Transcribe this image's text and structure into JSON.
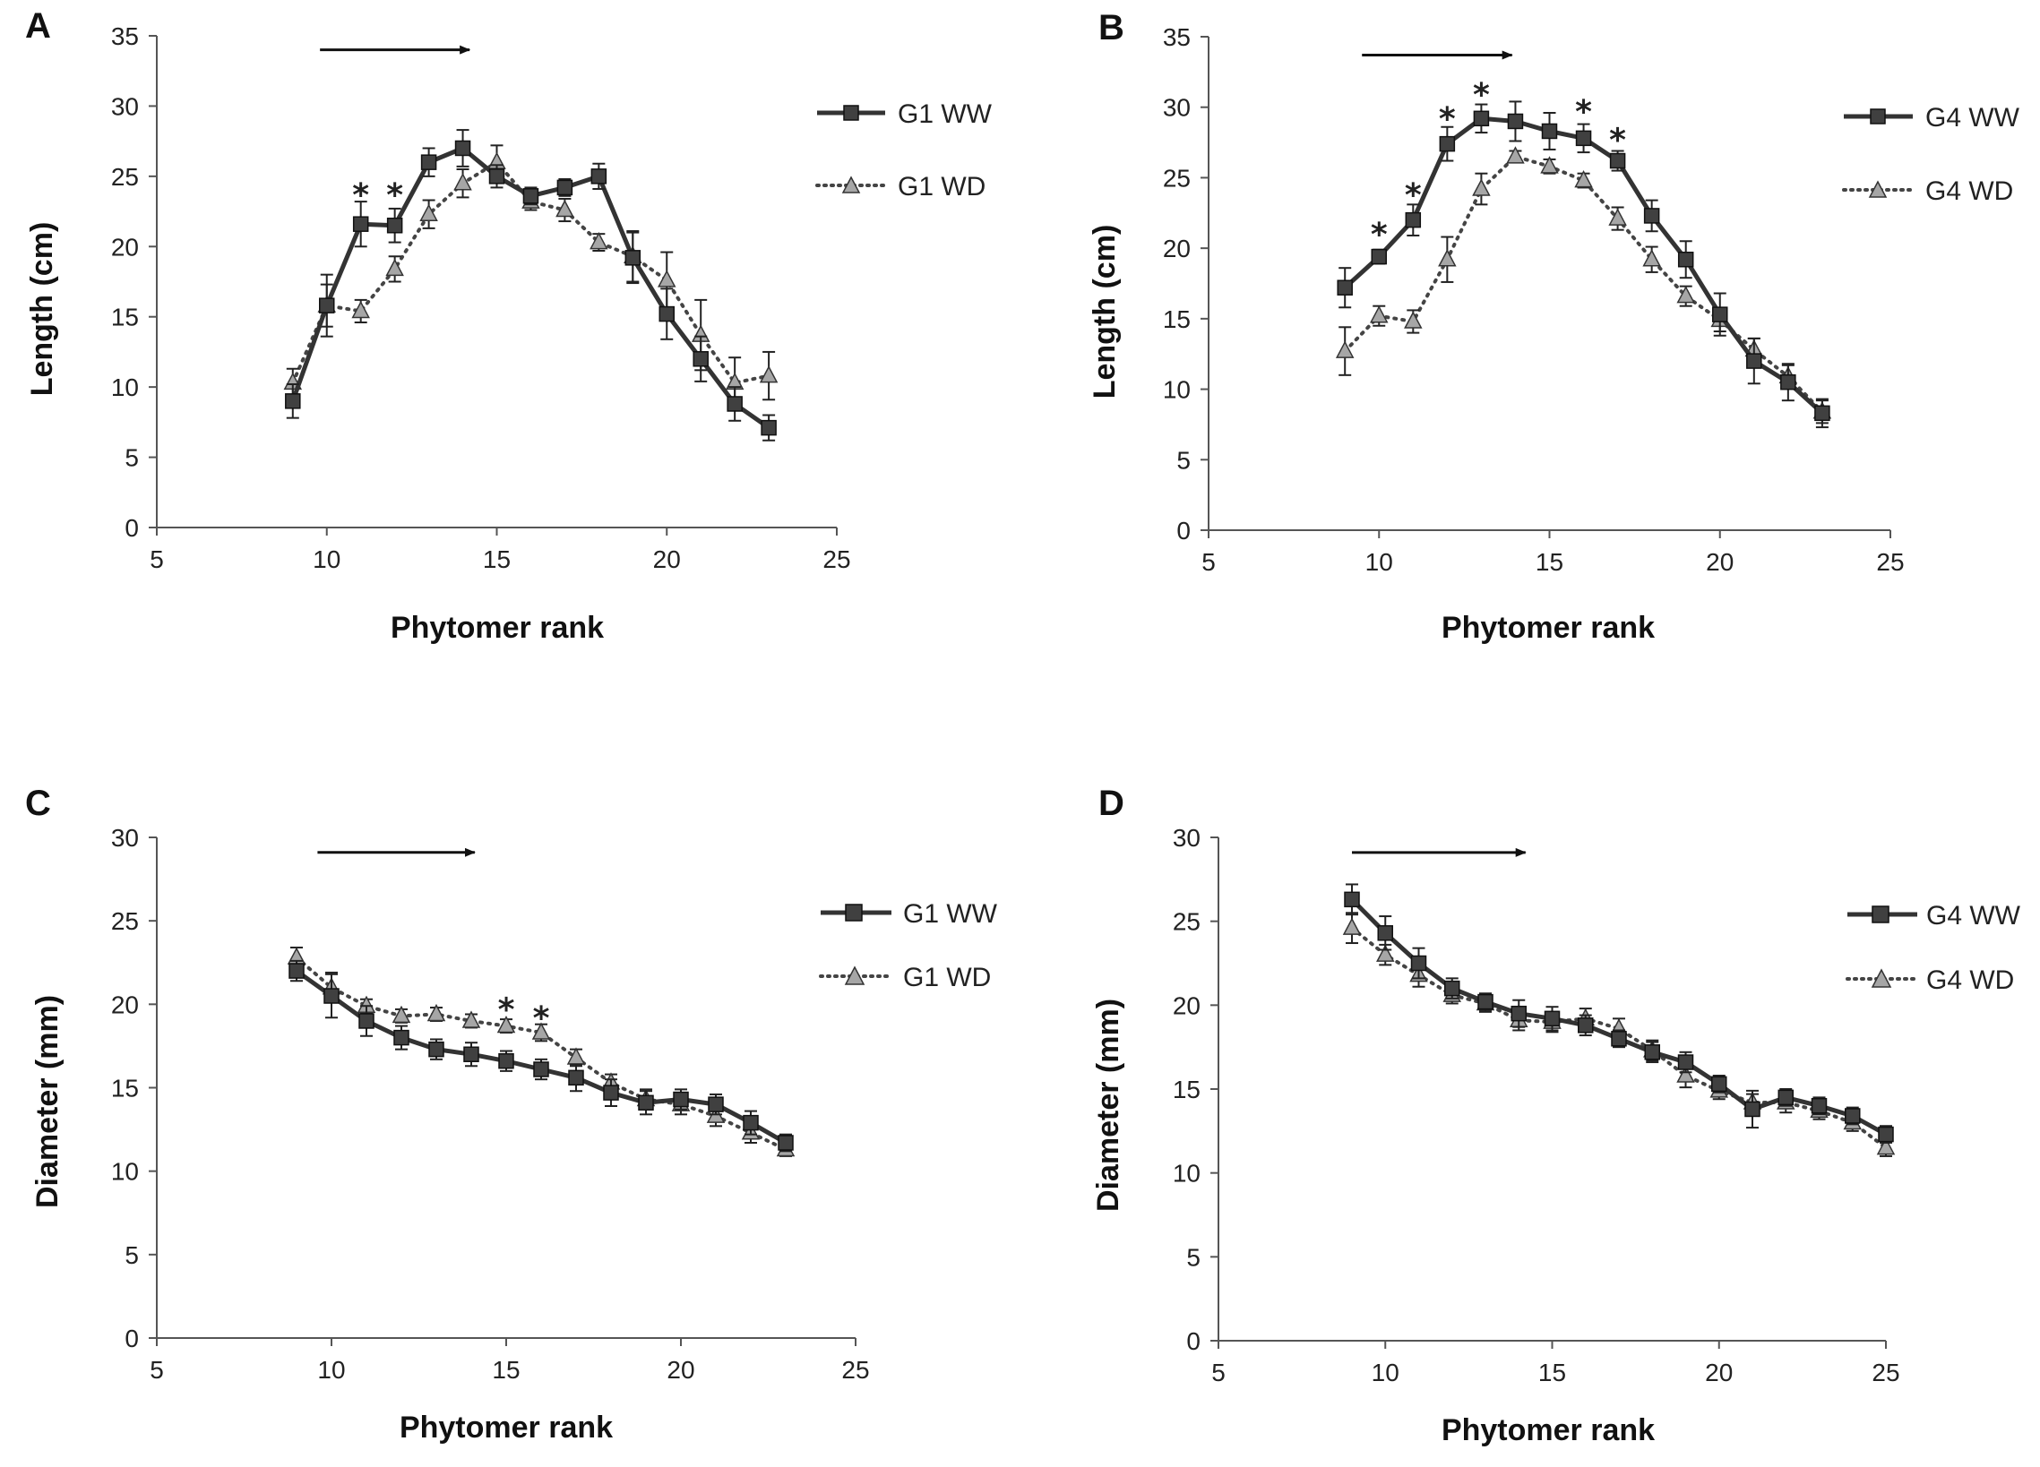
{
  "chart_data": [
    {
      "panel": "A",
      "type": "line",
      "xlabel": "Phytomer rank",
      "ylabel": "Length (cm)",
      "xlim": [
        5,
        25
      ],
      "ylim": [
        0,
        35
      ],
      "xticks": [
        5,
        10,
        15,
        20,
        25
      ],
      "yticks": [
        0,
        5,
        10,
        15,
        20,
        25,
        30,
        35
      ],
      "arrow": {
        "from": 9.8,
        "to": 14.2,
        "y": 34.0
      },
      "series": [
        {
          "name": "G1 WW",
          "style": "solid",
          "marker": "square",
          "x": [
            9,
            10,
            11,
            12,
            13,
            14,
            15,
            16,
            17,
            18,
            19,
            20,
            21,
            22,
            23
          ],
          "values": [
            9.0,
            15.8,
            21.6,
            21.5,
            26.0,
            27.0,
            25.0,
            23.6,
            24.2,
            25.0,
            19.2,
            15.2,
            12.0,
            8.8,
            7.1
          ],
          "errors": [
            1.2,
            2.2,
            1.6,
            1.2,
            1.0,
            1.3,
            0.8,
            0.6,
            0.6,
            0.9,
            1.8,
            1.8,
            1.6,
            1.2,
            0.9
          ]
        },
        {
          "name": "G1 WD",
          "style": "dotted",
          "marker": "triangle",
          "x": [
            9,
            10,
            11,
            12,
            13,
            14,
            15,
            16,
            17,
            18,
            19,
            20,
            21,
            22,
            23
          ],
          "values": [
            10.3,
            15.8,
            15.4,
            18.4,
            22.3,
            24.5,
            26.0,
            23.2,
            22.6,
            20.3,
            19.3,
            17.6,
            13.7,
            10.3,
            10.8
          ],
          "errors": [
            1.0,
            1.5,
            0.8,
            0.9,
            1.0,
            1.0,
            1.2,
            0.6,
            0.8,
            0.6,
            1.8,
            2.0,
            2.5,
            1.8,
            1.7
          ]
        }
      ],
      "annotations": [
        {
          "text": "*",
          "x": 11,
          "y": 24.3
        },
        {
          "text": "*",
          "x": 12,
          "y": 24.3
        }
      ]
    },
    {
      "panel": "B",
      "type": "line",
      "xlabel": "Phytomer rank",
      "ylabel": "Length (cm)",
      "xlim": [
        5,
        25
      ],
      "ylim": [
        0,
        35
      ],
      "xticks": [
        5,
        10,
        15,
        20,
        25
      ],
      "yticks": [
        0,
        5,
        10,
        15,
        20,
        25,
        30,
        35
      ],
      "arrow": {
        "from": 9.5,
        "to": 13.9,
        "y": 33.7
      },
      "series": [
        {
          "name": "G4 WW",
          "style": "solid",
          "marker": "square",
          "x": [
            9,
            10,
            11,
            12,
            13,
            14,
            15,
            16,
            17,
            18,
            19,
            20,
            21,
            22,
            23
          ],
          "values": [
            17.2,
            19.4,
            22.0,
            27.4,
            29.2,
            29.0,
            28.3,
            27.8,
            26.2,
            22.3,
            19.2,
            15.3,
            12.0,
            10.5,
            8.3
          ],
          "errors": [
            1.4,
            0.5,
            1.1,
            1.2,
            1.0,
            1.4,
            1.3,
            1.0,
            0.7,
            1.1,
            1.3,
            1.5,
            1.6,
            1.3,
            1.0
          ]
        },
        {
          "name": "G4 WD",
          "style": "dotted",
          "marker": "triangle",
          "x": [
            9,
            10,
            11,
            12,
            13,
            14,
            15,
            16,
            17,
            18,
            19,
            20,
            21,
            22,
            23
          ],
          "values": [
            12.7,
            15.2,
            14.8,
            19.2,
            24.2,
            26.5,
            25.8,
            24.8,
            22.1,
            19.2,
            16.6,
            14.9,
            12.8,
            10.9,
            8.4
          ],
          "errors": [
            1.7,
            0.7,
            0.8,
            1.6,
            1.1,
            0.4,
            0.5,
            0.5,
            0.8,
            0.9,
            0.7,
            0.8,
            0.8,
            0.8,
            0.8
          ]
        }
      ],
      "annotations": [
        {
          "text": "*",
          "x": 10,
          "y": 21.6
        },
        {
          "text": "*",
          "x": 11,
          "y": 24.4
        },
        {
          "text": "*",
          "x": 12,
          "y": 29.8
        },
        {
          "text": "*",
          "x": 13,
          "y": 31.5
        },
        {
          "text": "*",
          "x": 16,
          "y": 30.3
        },
        {
          "text": "*",
          "x": 17,
          "y": 28.3
        }
      ]
    },
    {
      "panel": "C",
      "type": "line",
      "xlabel": "Phytomer rank",
      "ylabel": "Diameter (mm)",
      "xlim": [
        5,
        25
      ],
      "ylim": [
        0,
        30
      ],
      "xticks": [
        5,
        10,
        15,
        20,
        25
      ],
      "yticks": [
        0,
        5,
        10,
        15,
        20,
        25,
        30
      ],
      "arrow": {
        "from": 9.6,
        "to": 14.1,
        "y": 29.1
      },
      "series": [
        {
          "name": "G1 WW",
          "style": "solid",
          "marker": "square",
          "x": [
            9,
            10,
            11,
            12,
            13,
            14,
            15,
            16,
            17,
            18,
            19,
            20,
            21,
            22,
            23
          ],
          "values": [
            22.0,
            20.5,
            19.0,
            18.0,
            17.3,
            17.0,
            16.6,
            16.1,
            15.6,
            14.7,
            14.1,
            14.3,
            14.0,
            12.9,
            11.7
          ],
          "errors": [
            0.6,
            1.3,
            0.9,
            0.7,
            0.6,
            0.7,
            0.6,
            0.6,
            0.8,
            0.8,
            0.7,
            0.6,
            0.6,
            0.7,
            0.5
          ]
        },
        {
          "name": "G1 WD",
          "style": "dotted",
          "marker": "triangle",
          "x": [
            9,
            10,
            11,
            12,
            13,
            14,
            15,
            16,
            17,
            18,
            19,
            20,
            21,
            22,
            23
          ],
          "values": [
            22.8,
            21.0,
            19.9,
            19.3,
            19.4,
            19.0,
            18.7,
            18.3,
            16.8,
            15.3,
            14.3,
            14.0,
            13.3,
            12.3,
            11.3
          ],
          "errors": [
            0.6,
            0.9,
            0.4,
            0.4,
            0.4,
            0.4,
            0.4,
            0.5,
            0.5,
            0.5,
            0.6,
            0.6,
            0.6,
            0.6,
            0.4
          ]
        }
      ],
      "annotations": [
        {
          "text": "*",
          "x": 15,
          "y": 20.2
        },
        {
          "text": "*",
          "x": 16,
          "y": 19.7
        }
      ]
    },
    {
      "panel": "D",
      "type": "line",
      "xlabel": "Phytomer rank",
      "ylabel": "Diameter (mm)",
      "xlim": [
        5,
        25
      ],
      "ylim": [
        0,
        30
      ],
      "xticks": [
        5,
        10,
        15,
        20,
        25
      ],
      "yticks": [
        0,
        5,
        10,
        15,
        20,
        25,
        30
      ],
      "arrow": {
        "from": 9.0,
        "to": 14.2,
        "y": 29.1
      },
      "series": [
        {
          "name": "G4 WW",
          "style": "solid",
          "marker": "square",
          "x": [
            9,
            10,
            11,
            12,
            13,
            14,
            15,
            16,
            17,
            18,
            19,
            20,
            21,
            22,
            23,
            24,
            25
          ],
          "values": [
            26.3,
            24.3,
            22.5,
            21.0,
            20.2,
            19.5,
            19.2,
            18.8,
            18.0,
            17.2,
            16.6,
            15.3,
            13.8,
            14.5,
            14.0,
            13.4,
            12.3
          ],
          "errors": [
            0.9,
            1.0,
            0.9,
            0.6,
            0.5,
            0.8,
            0.7,
            0.6,
            0.5,
            0.6,
            0.6,
            0.5,
            1.1,
            0.5,
            0.5,
            0.5,
            0.5
          ]
        },
        {
          "name": "G4 WD",
          "style": "dotted",
          "marker": "triangle",
          "x": [
            9,
            10,
            11,
            12,
            13,
            14,
            15,
            16,
            17,
            18,
            19,
            20,
            21,
            22,
            23,
            24,
            25
          ],
          "values": [
            24.6,
            23.0,
            21.8,
            20.6,
            20.1,
            19.1,
            19.0,
            19.2,
            18.6,
            17.3,
            15.8,
            14.9,
            14.2,
            14.2,
            13.7,
            13.0,
            11.5
          ],
          "errors": [
            0.9,
            0.6,
            0.7,
            0.5,
            0.5,
            0.6,
            0.6,
            0.6,
            0.6,
            0.6,
            0.7,
            0.5,
            0.5,
            0.6,
            0.5,
            0.5,
            0.5
          ]
        }
      ],
      "annotations": []
    }
  ]
}
